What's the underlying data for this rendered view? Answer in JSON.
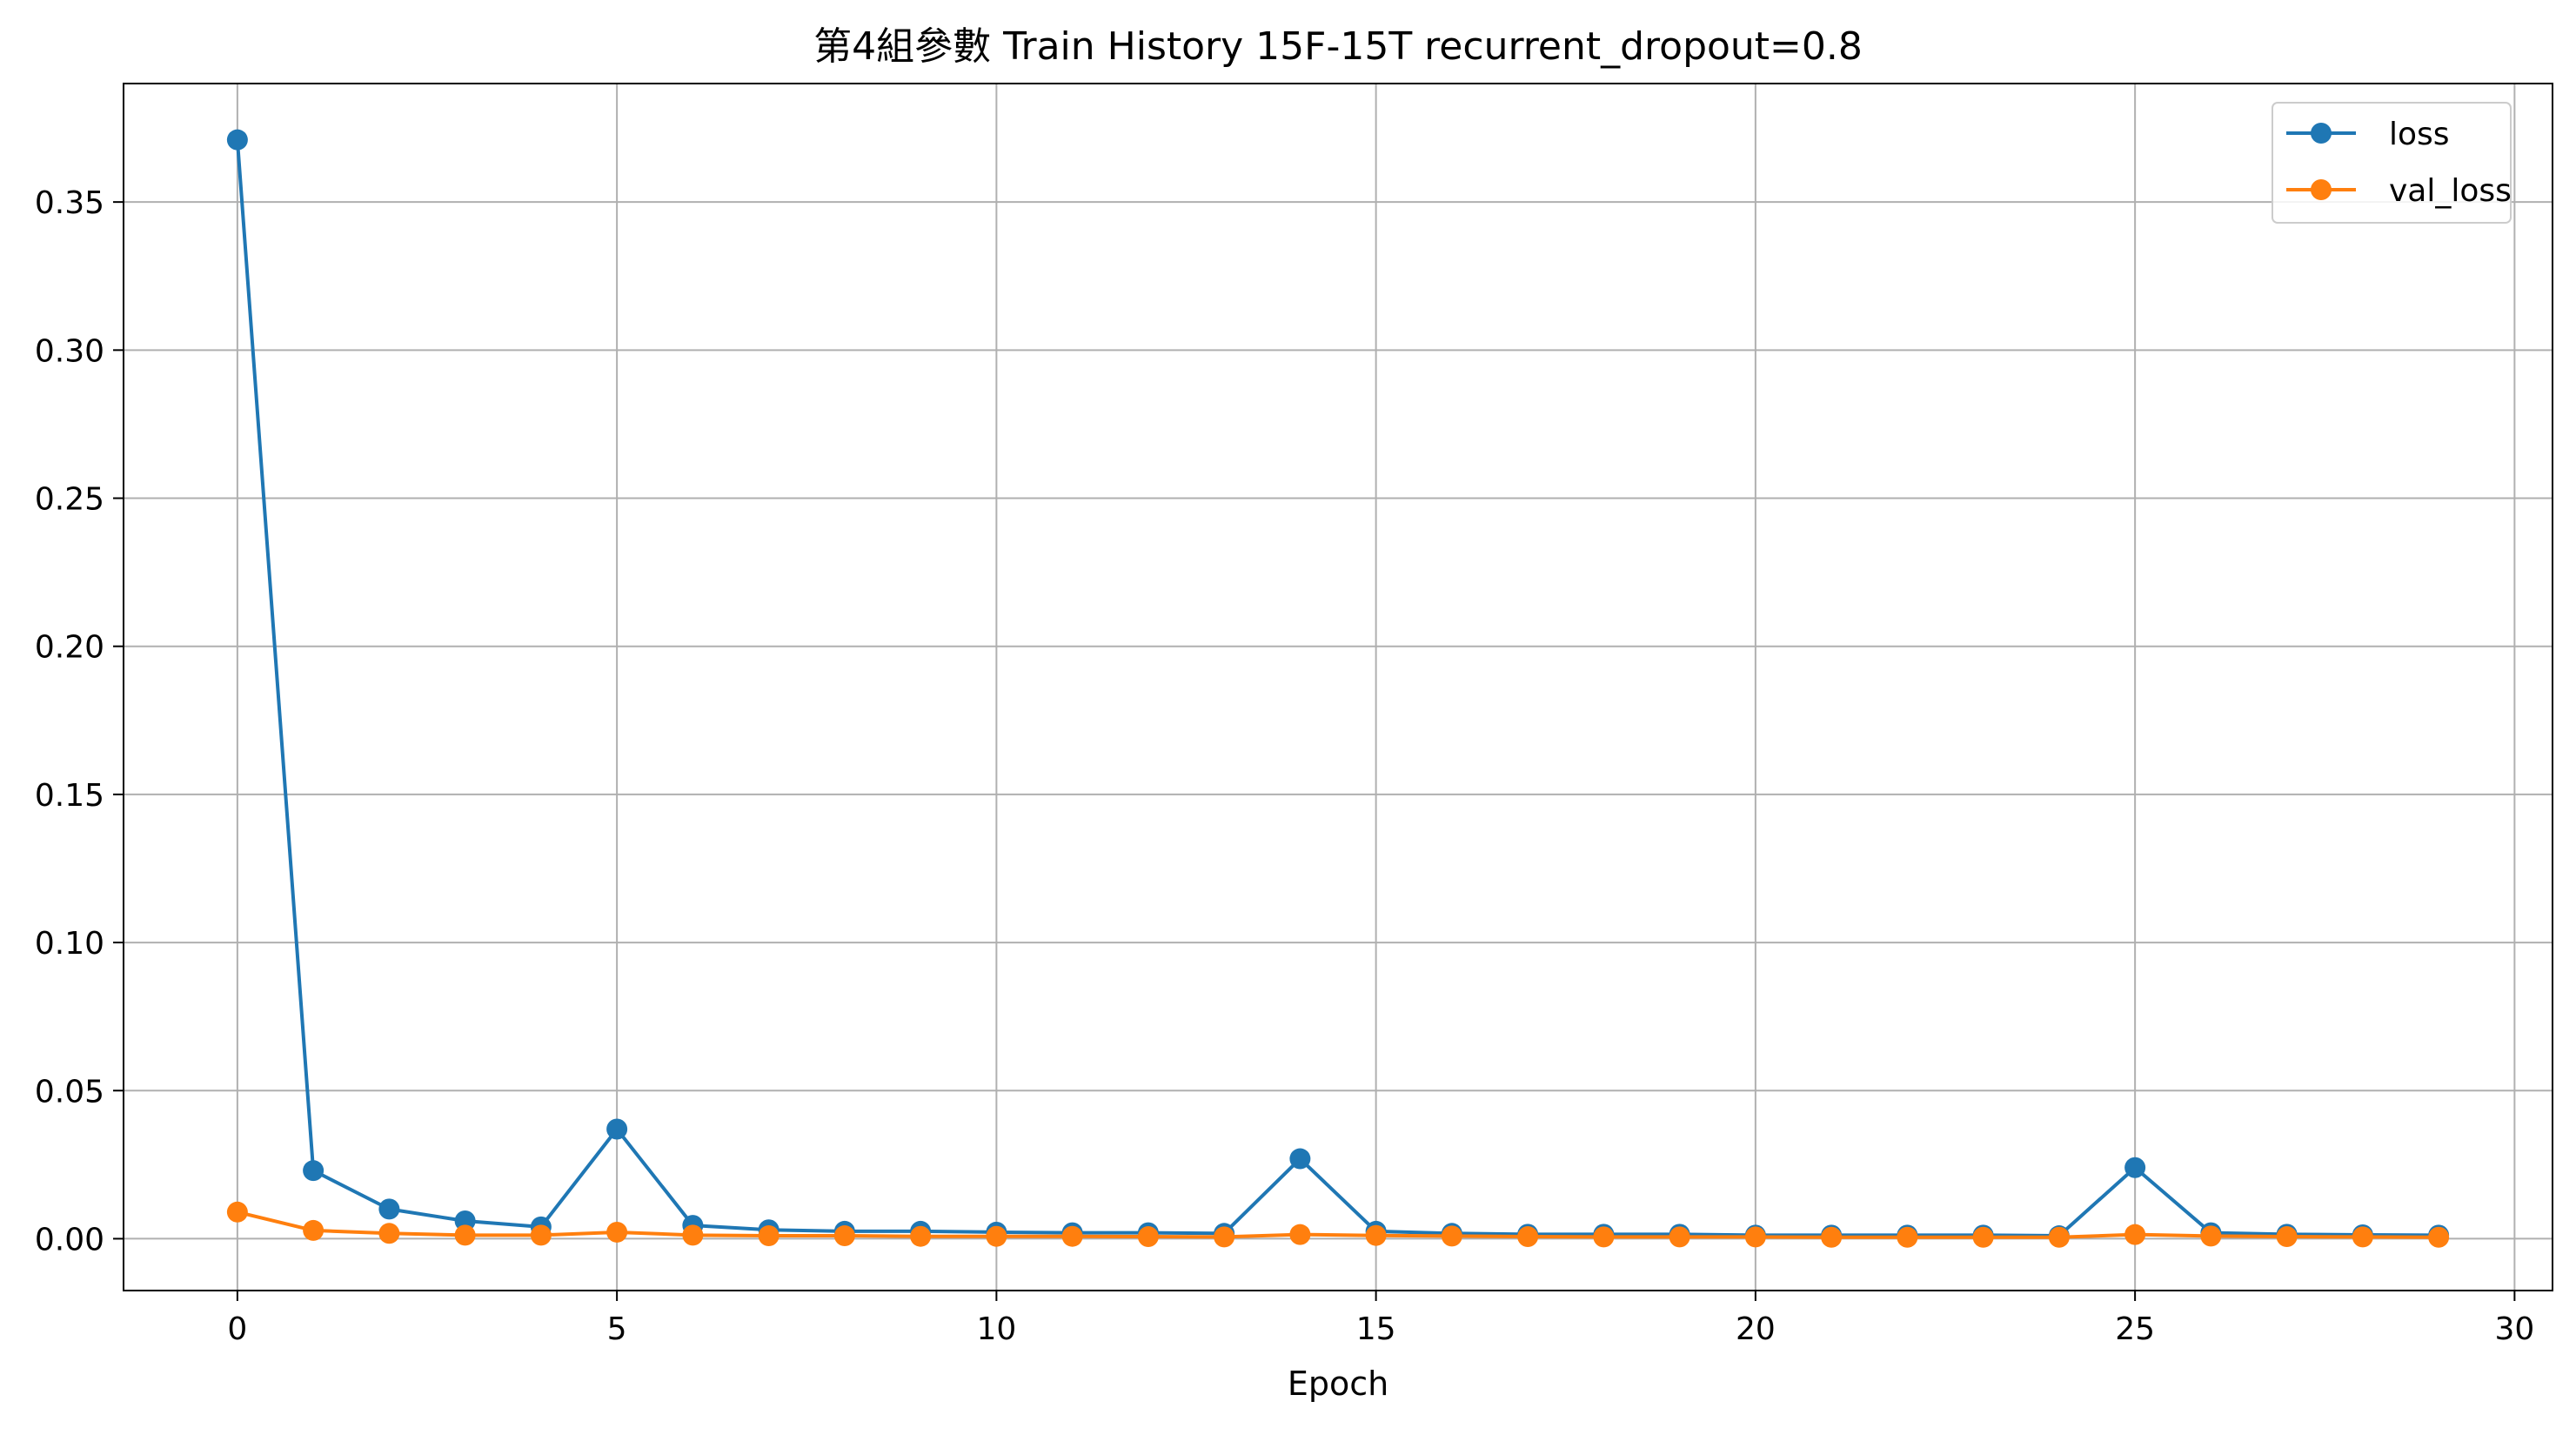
{
  "chart_data": {
    "type": "line",
    "title": "第4組參數 Train History 15F-15T recurrent_dropout=0.8",
    "xlabel": "Epoch",
    "ylabel": "",
    "xlim": [
      -1.5,
      30.5
    ],
    "ylim": [
      -0.0175,
      0.39
    ],
    "x_ticks": [
      0,
      5,
      10,
      15,
      20,
      25,
      30
    ],
    "y_ticks": [
      0.0,
      0.05,
      0.1,
      0.15,
      0.2,
      0.25,
      0.3,
      0.35
    ],
    "y_tick_labels": [
      "0.00",
      "0.05",
      "0.10",
      "0.15",
      "0.20",
      "0.25",
      "0.30",
      "0.35"
    ],
    "grid": true,
    "legend_position": "top-right",
    "x": [
      0,
      1,
      2,
      3,
      4,
      5,
      6,
      7,
      8,
      9,
      10,
      11,
      12,
      13,
      14,
      15,
      16,
      17,
      18,
      19,
      20,
      21,
      22,
      23,
      24,
      25,
      26,
      27,
      28,
      29
    ],
    "series": [
      {
        "name": "loss",
        "color": "#1f77b4",
        "values": [
          0.371,
          0.023,
          0.01,
          0.006,
          0.004,
          0.037,
          0.0045,
          0.003,
          0.0025,
          0.0025,
          0.0022,
          0.002,
          0.002,
          0.0018,
          0.027,
          0.0025,
          0.0018,
          0.0015,
          0.0015,
          0.0015,
          0.0012,
          0.0012,
          0.0012,
          0.0012,
          0.001,
          0.024,
          0.002,
          0.0015,
          0.0013,
          0.0012
        ]
      },
      {
        "name": "val_loss",
        "color": "#ff7f0e",
        "values": [
          0.009,
          0.0028,
          0.0018,
          0.0012,
          0.0012,
          0.0022,
          0.0012,
          0.001,
          0.001,
          0.0008,
          0.0008,
          0.0008,
          0.0007,
          0.0006,
          0.0014,
          0.0011,
          0.0009,
          0.0007,
          0.0006,
          0.0006,
          0.0006,
          0.0005,
          0.0005,
          0.0005,
          0.0005,
          0.0014,
          0.0009,
          0.0007,
          0.0006,
          0.0005
        ]
      }
    ]
  },
  "colors": {
    "grid": "#b0b0b0",
    "axes": "#000000",
    "background": "#ffffff"
  }
}
